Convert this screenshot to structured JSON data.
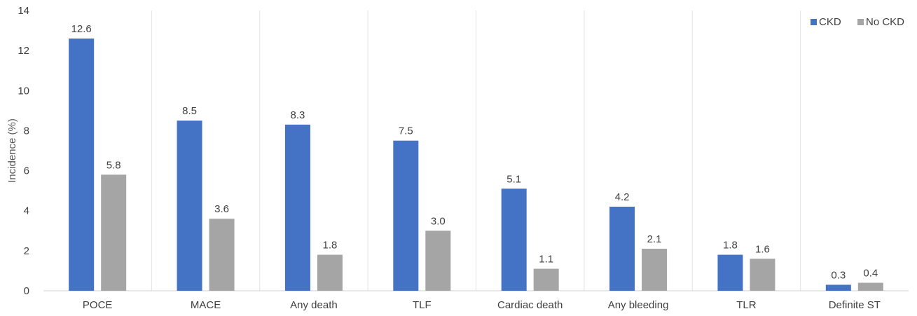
{
  "chart_data": {
    "type": "bar",
    "categories": [
      "POCE",
      "MACE",
      "Any death",
      "TLF",
      "Cardiac death",
      "Any bleeding",
      "TLR",
      "Definite ST"
    ],
    "series": [
      {
        "name": "CKD",
        "color": "#4472c4",
        "values": [
          12.6,
          8.5,
          8.3,
          7.5,
          5.1,
          4.2,
          1.8,
          0.3
        ],
        "labels": [
          "12.6",
          "8.5",
          "8.3",
          "7.5",
          "5.1",
          "4.2",
          "1.8",
          "0.3"
        ]
      },
      {
        "name": "No CKD",
        "color": "#a5a5a5",
        "values": [
          5.8,
          3.6,
          1.8,
          3.0,
          1.1,
          2.1,
          1.6,
          0.4
        ],
        "labels": [
          "5.8",
          "3.6",
          "1.8",
          "3.0",
          "1.1",
          "2.1",
          "1.6",
          "0.4"
        ]
      }
    ],
    "title": "",
    "xlabel": "",
    "ylabel": "Incidence (%)",
    "ylim": [
      0,
      14
    ],
    "yticks": [
      "0",
      "2",
      "4",
      "6",
      "8",
      "10",
      "12",
      "14"
    ],
    "grid": "vertical separators between categories",
    "legend_position": "top-right"
  }
}
